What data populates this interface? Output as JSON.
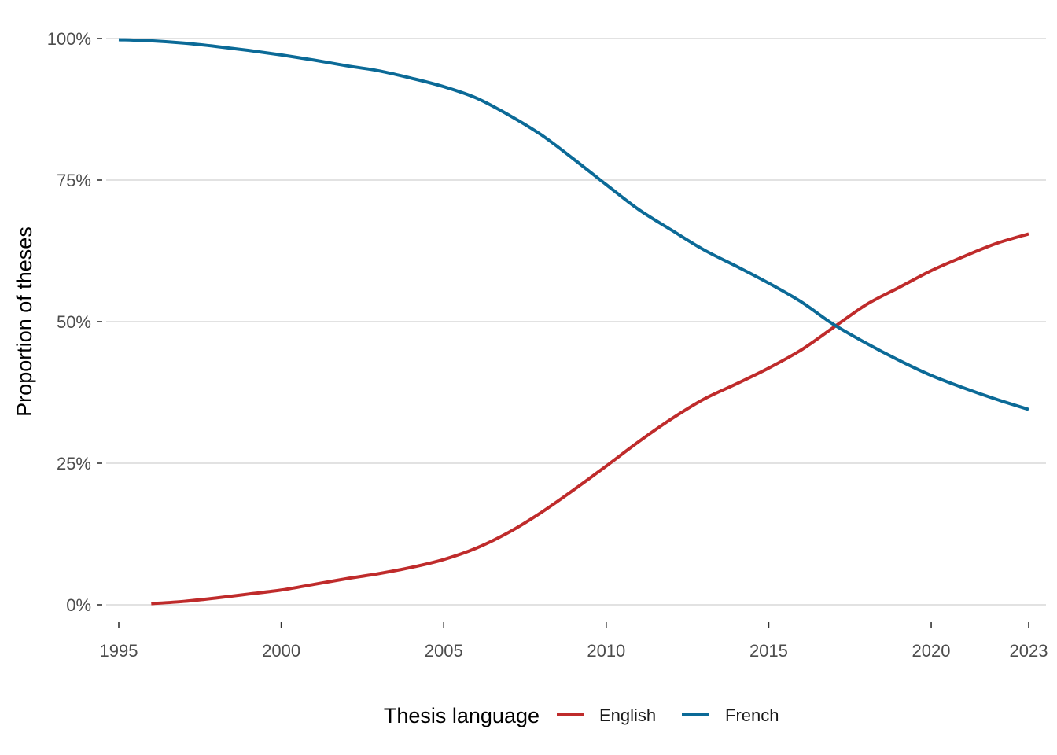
{
  "chart_data": {
    "type": "line",
    "xlabel": "",
    "ylabel": "Proportion of theses",
    "xlim": [
      1995,
      2023
    ],
    "ylim": [
      0,
      1
    ],
    "x_ticks": [
      1995,
      2000,
      2005,
      2010,
      2015,
      2020,
      2023
    ],
    "y_ticks": [
      0,
      0.25,
      0.5,
      0.75,
      1
    ],
    "y_tick_labels": [
      "0%",
      "25%",
      "50%",
      "75%",
      "100%"
    ],
    "grid": "horizontal",
    "legend": {
      "title": "Thesis language",
      "position": "bottom"
    },
    "series": [
      {
        "name": "English",
        "color": "#bf2b2b",
        "x": [
          1996,
          1997,
          1998,
          1999,
          2000,
          2001,
          2002,
          2003,
          2004,
          2005,
          2006,
          2007,
          2008,
          2009,
          2010,
          2011,
          2012,
          2013,
          2014,
          2015,
          2016,
          2017,
          2018,
          2019,
          2020,
          2021,
          2022,
          2023
        ],
        "y": [
          0.002,
          0.006,
          0.012,
          0.019,
          0.026,
          0.036,
          0.046,
          0.055,
          0.066,
          0.08,
          0.1,
          0.128,
          0.163,
          0.203,
          0.245,
          0.288,
          0.328,
          0.363,
          0.39,
          0.418,
          0.45,
          0.49,
          0.53,
          0.56,
          0.59,
          0.615,
          0.638,
          0.655
        ]
      },
      {
        "name": "French",
        "color": "#0b6a97",
        "x": [
          1995,
          1996,
          1997,
          1998,
          1999,
          2000,
          2001,
          2002,
          2003,
          2004,
          2005,
          2006,
          2007,
          2008,
          2009,
          2010,
          2011,
          2012,
          2013,
          2014,
          2015,
          2016,
          2017,
          2018,
          2019,
          2020,
          2021,
          2022,
          2023
        ],
        "y": [
          0.998,
          0.996,
          0.992,
          0.986,
          0.979,
          0.971,
          0.962,
          0.952,
          0.943,
          0.93,
          0.915,
          0.895,
          0.865,
          0.83,
          0.787,
          0.742,
          0.698,
          0.662,
          0.627,
          0.598,
          0.568,
          0.535,
          0.495,
          0.462,
          0.432,
          0.405,
          0.383,
          0.363,
          0.345
        ]
      }
    ]
  }
}
